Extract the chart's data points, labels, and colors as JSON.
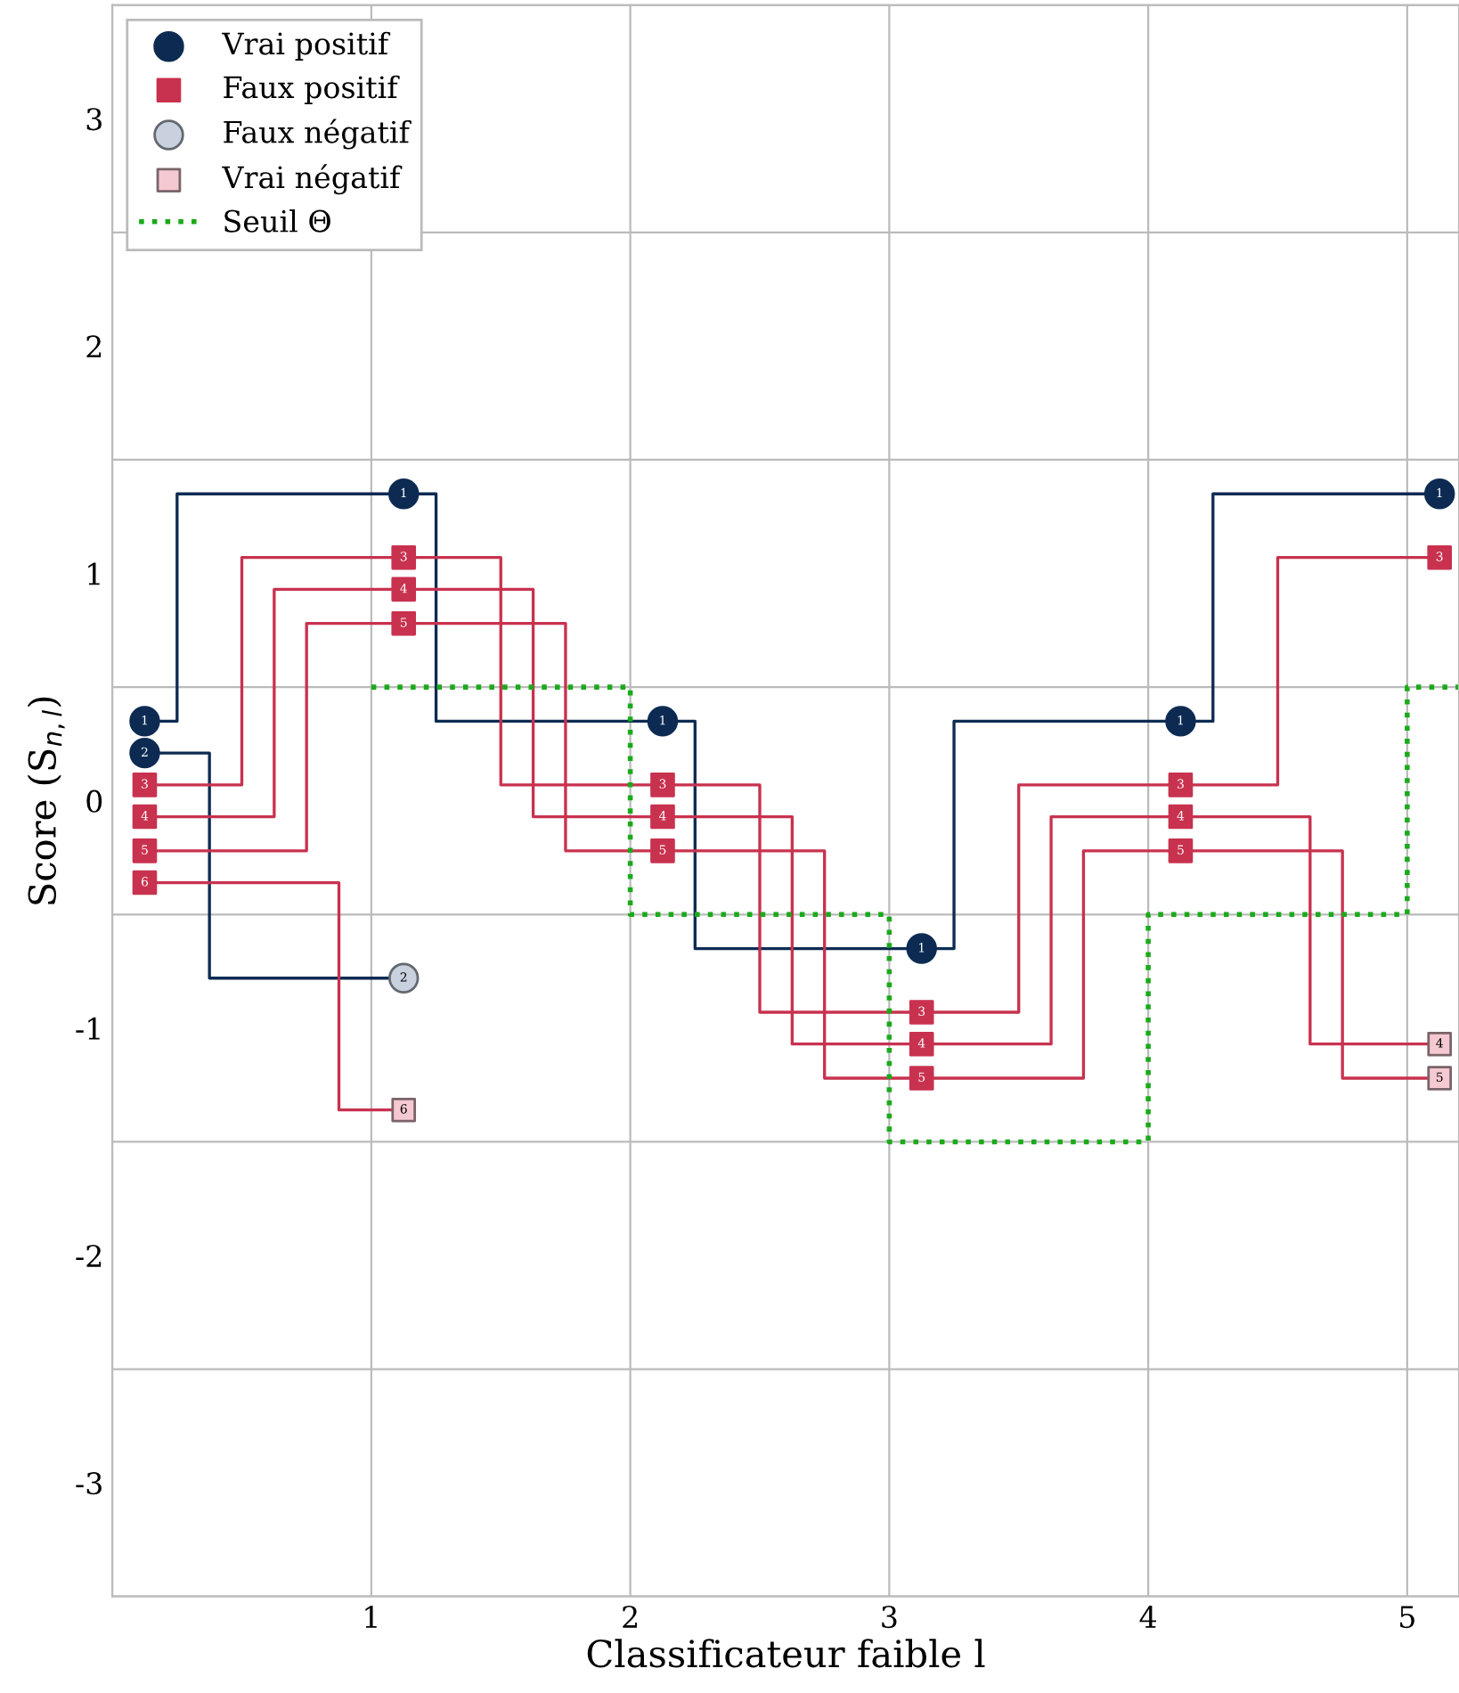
{
  "chart_data": {
    "type": "step",
    "xlabel": "Classificateur faible l",
    "ylabel": "Score (S$_{n,l}$)",
    "xlim": [
      0,
      5.2
    ],
    "ylim": [
      -3.5,
      3.5
    ],
    "xticks": [
      1,
      2,
      3,
      4,
      5
    ],
    "yticks": [
      {
        "value": -3.5,
        "label": null
      },
      -3,
      {
        "value": -2.5,
        "label": null
      },
      -2,
      {
        "value": -1.5,
        "label": null
      },
      -1,
      {
        "value": -0.5,
        "label": null
      },
      0,
      {
        "value": 0.5,
        "label": null
      },
      1,
      {
        "value": 1.5,
        "label": null
      },
      2,
      {
        "value": 2.5,
        "label": null
      },
      3,
      {
        "value": 3.5,
        "label": null
      }
    ],
    "grid": true,
    "legend": "top left",
    "line_style": "solid",
    "marker": "none",
    "series": [
      {
        "color": "#0d2b52",
        "x": [
          0.125,
          0.25,
          1.25,
          2.25,
          3.25,
          4.25,
          5.125
        ],
        "values": [
          0.35,
          1.35,
          0.35,
          -0.65,
          0.35,
          1.35,
          1.35
        ]
      },
      {
        "color": "#0d2b52",
        "x": [
          0.125,
          0.375,
          1.125
        ],
        "values": [
          0.21,
          -0.78,
          -0.78
        ]
      },
      {
        "color": "#c8324f",
        "x": [
          0.125,
          0.5,
          1.5,
          2.5,
          3.5,
          4.5,
          5.125
        ],
        "values": [
          0.07,
          1.07,
          0.07,
          -0.93,
          0.07,
          1.07,
          1.07
        ]
      },
      {
        "color": "#c8324f",
        "x": [
          0.125,
          0.625,
          1.625,
          2.625,
          3.625,
          4.625,
          5.125
        ],
        "values": [
          -0.07,
          0.93,
          -0.07,
          -1.07,
          -0.07,
          -1.07,
          -1.07
        ]
      },
      {
        "color": "#c8324f",
        "x": [
          0.125,
          0.75,
          1.75,
          2.75,
          3.75,
          4.75,
          5.125
        ],
        "values": [
          -0.22,
          0.78,
          -0.22,
          -1.22,
          -0.22,
          -1.22,
          -1.22
        ]
      },
      {
        "color": "#c8324f",
        "x": [
          0.125,
          0.875,
          1.125
        ],
        "values": [
          -0.36,
          -1.36,
          -1.36
        ]
      },
      {
        "type": "scatter",
        "name": "Vrai positif",
        "color": "#0d2b52",
        "marker": "circle",
        "x": [
          0.125,
          0.125,
          1.125,
          2.125,
          3.125,
          4.125,
          5.125
        ],
        "values": [
          0.35,
          0.21,
          1.35,
          0.35,
          -0.65,
          0.35,
          1.35
        ]
      },
      {
        "type": "scatter",
        "name": "Faux positif",
        "color": "#c8324f",
        "marker": "square",
        "x": [
          0.125,
          1.125,
          2.125,
          3.125,
          4.125,
          5.125,
          0.125,
          1.125,
          2.125,
          3.125,
          4.125,
          0.125,
          1.125,
          2.125,
          3.125,
          4.125,
          0.125
        ],
        "values": [
          0.07,
          1.07,
          0.07,
          -0.93,
          0.07,
          1.07,
          -0.07,
          0.93,
          -0.07,
          -1.07,
          -0.07,
          -0.22,
          0.78,
          -0.22,
          -1.22,
          -0.22,
          -0.36
        ]
      },
      {
        "type": "scatter",
        "name": "Faux négatif",
        "color": "#c9d1de",
        "marker": "circle",
        "x": [
          1.125
        ],
        "values": [
          -0.78
        ]
      },
      {
        "type": "scatter",
        "name": "Vrai négatif",
        "color": "#f5c9d2",
        "marker": "square",
        "x": [
          5.125,
          5.125,
          1.125
        ],
        "values": [
          -1.07,
          -1.22,
          -1.36
        ]
      },
      {
        "name": "Seuil Θ",
        "color": "#1aaa1a",
        "line_style": "dotted",
        "x": [
          1,
          2,
          3,
          4,
          5,
          5.2
        ],
        "values": [
          0.5,
          -0.5,
          -1.5,
          -0.5,
          0.5,
          0.5
        ]
      }
    ],
    "annotations": [
      {
        "text": "1",
        "x": 0.125,
        "y": 0.35
      },
      {
        "text": "2",
        "x": 0.125,
        "y": 0.21
      },
      {
        "text": "1",
        "x": 1.125,
        "y": 1.35
      },
      {
        "text": "1",
        "x": 2.125,
        "y": 0.35
      },
      {
        "text": "1",
        "x": 3.125,
        "y": -0.65
      },
      {
        "text": "1",
        "x": 4.125,
        "y": 0.35
      },
      {
        "text": "1",
        "x": 5.125,
        "y": 1.35
      },
      {
        "text": "3",
        "x": 0.125,
        "y": 0.07
      },
      {
        "text": "3",
        "x": 1.125,
        "y": 1.07
      },
      {
        "text": "3",
        "x": 2.125,
        "y": 0.07
      },
      {
        "text": "3",
        "x": 3.125,
        "y": -0.93
      },
      {
        "text": "3",
        "x": 4.125,
        "y": 0.07
      },
      {
        "text": "3",
        "x": 5.125,
        "y": 1.07
      },
      {
        "text": "4",
        "x": 0.125,
        "y": -0.07
      },
      {
        "text": "4",
        "x": 1.125,
        "y": 0.93
      },
      {
        "text": "4",
        "x": 2.125,
        "y": -0.07
      },
      {
        "text": "4",
        "x": 3.125,
        "y": -1.07
      },
      {
        "text": "4",
        "x": 4.125,
        "y": -0.07
      },
      {
        "text": "4",
        "x": 5.125,
        "y": -1.07
      },
      {
        "text": "5",
        "x": 0.125,
        "y": -0.22
      },
      {
        "text": "5",
        "x": 1.125,
        "y": 0.78
      },
      {
        "text": "5",
        "x": 2.125,
        "y": -0.22
      },
      {
        "text": "5",
        "x": 3.125,
        "y": -1.22
      },
      {
        "text": "5",
        "x": 4.125,
        "y": -0.22
      },
      {
        "text": "5",
        "x": 5.125,
        "y": -1.22
      },
      {
        "text": "6",
        "x": 0.125,
        "y": -0.36
      },
      {
        "text": "6",
        "x": 1.125,
        "y": -1.36
      },
      {
        "text": "2",
        "x": 1.125,
        "y": -0.78
      }
    ]
  }
}
